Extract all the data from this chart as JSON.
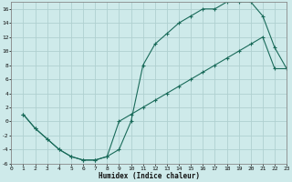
{
  "xlabel": "Humidex (Indice chaleur)",
  "bg_color": "#ceeaea",
  "grid_color": "#b0d0d0",
  "line_color": "#1a6b5a",
  "line1_x": [
    1,
    2,
    3,
    4,
    5,
    6,
    7,
    8,
    9,
    10,
    11,
    12,
    13,
    14,
    15,
    16,
    17,
    18,
    19,
    20,
    21,
    22,
    23
  ],
  "line1_y": [
    1,
    -1,
    -2.5,
    -4,
    -5,
    -5.5,
    -5.5,
    -5,
    -4,
    0,
    8,
    11,
    12.5,
    14,
    15,
    16,
    16,
    17,
    17,
    17,
    15,
    10.5,
    7.5
  ],
  "line2_x": [
    1,
    2,
    3,
    4,
    5,
    6,
    7,
    8,
    9,
    10,
    11,
    12,
    13,
    14,
    15,
    16,
    17,
    18,
    19,
    20,
    21,
    22,
    23
  ],
  "line2_y": [
    1,
    -1,
    -2.5,
    -4,
    -5,
    -5.5,
    -5.5,
    -5,
    0,
    1,
    2,
    3,
    4,
    5,
    6,
    7,
    8,
    9,
    10,
    11,
    12,
    7.5,
    7.5
  ],
  "xlim": [
    0,
    23
  ],
  "ylim": [
    -6,
    17
  ],
  "yticks": [
    -6,
    -4,
    -2,
    0,
    2,
    4,
    6,
    8,
    10,
    12,
    14,
    16
  ],
  "xticks": [
    0,
    1,
    2,
    3,
    4,
    5,
    6,
    7,
    8,
    9,
    10,
    11,
    12,
    13,
    14,
    15,
    16,
    17,
    18,
    19,
    20,
    21,
    22,
    23
  ]
}
